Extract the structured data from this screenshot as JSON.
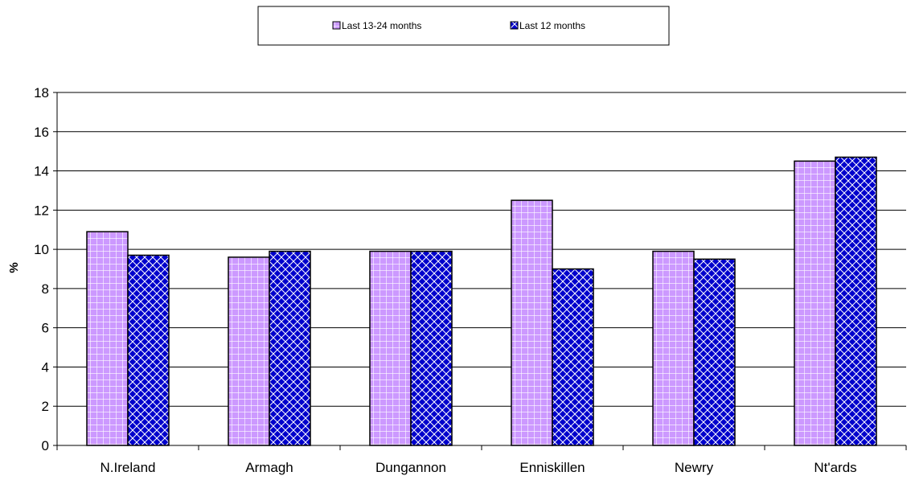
{
  "chart_data": {
    "type": "bar",
    "title": "",
    "xlabel": "",
    "ylabel": "%",
    "ylim": [
      0,
      18
    ],
    "yticks": [
      0,
      2,
      4,
      6,
      8,
      10,
      12,
      14,
      16,
      18
    ],
    "grid": true,
    "legend_position": "top",
    "categories": [
      "N.Ireland",
      "Armagh",
      "Dungannon",
      "Enniskillen",
      "Newry",
      "Nt'ards"
    ],
    "series": [
      {
        "name": "Last 13-24 months",
        "color": "#cc99ff",
        "pattern": "grid",
        "values": [
          10.9,
          9.6,
          9.9,
          12.5,
          9.9,
          14.5
        ]
      },
      {
        "name": "Last 12 months",
        "color": "#0000cc",
        "pattern": "diagonal-cross",
        "values": [
          9.7,
          9.9,
          9.9,
          9.0,
          9.5,
          14.7
        ]
      }
    ]
  }
}
